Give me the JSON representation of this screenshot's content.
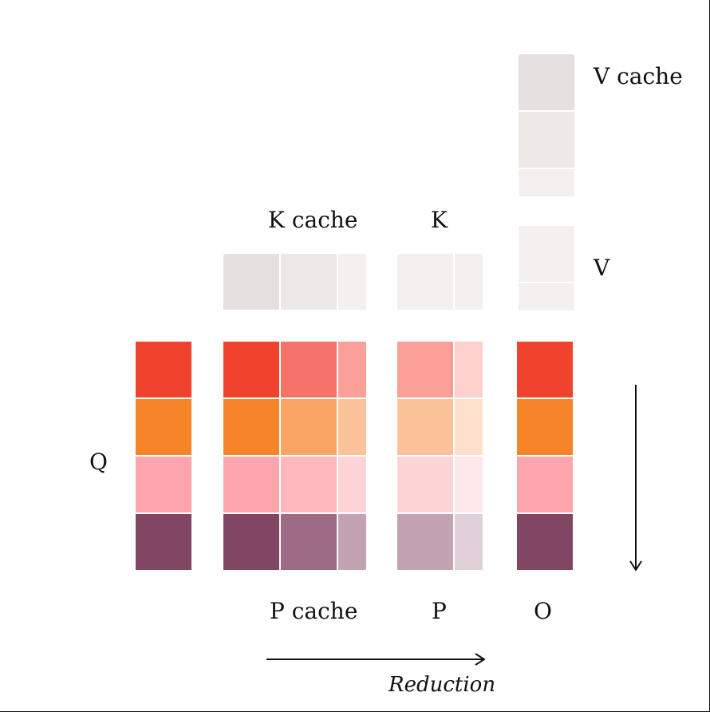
{
  "labels": {
    "v_cache": "V cache",
    "k_cache": "K cache",
    "k": "K",
    "v": "V",
    "q": "Q",
    "p_cache": "P cache",
    "p": "P",
    "o": "O",
    "reduction": "Reduction"
  },
  "colors": {
    "gray_dark": "#E6E1E0",
    "gray_mid": "#ECE9E7",
    "gray_light": "#F3F0EF",
    "red": "#EF432D",
    "red_2": "#F5736A",
    "red_3": "#FAA098",
    "red_4": "#FDD0CC",
    "orange": "#F6852A",
    "orange_2": "#FAA564",
    "orange_3": "#FCC39A",
    "orange_4": "#FEE0CC",
    "pink": "#FDA5AD",
    "pink_2": "#FEB8BE",
    "pink_3": "#FED4D7",
    "pink_4": "#FEE8EA",
    "plum": "#814664",
    "plum_2": "#9D6C84",
    "plum_3": "#C3A2B2",
    "plum_4": "#DFD0D8"
  }
}
